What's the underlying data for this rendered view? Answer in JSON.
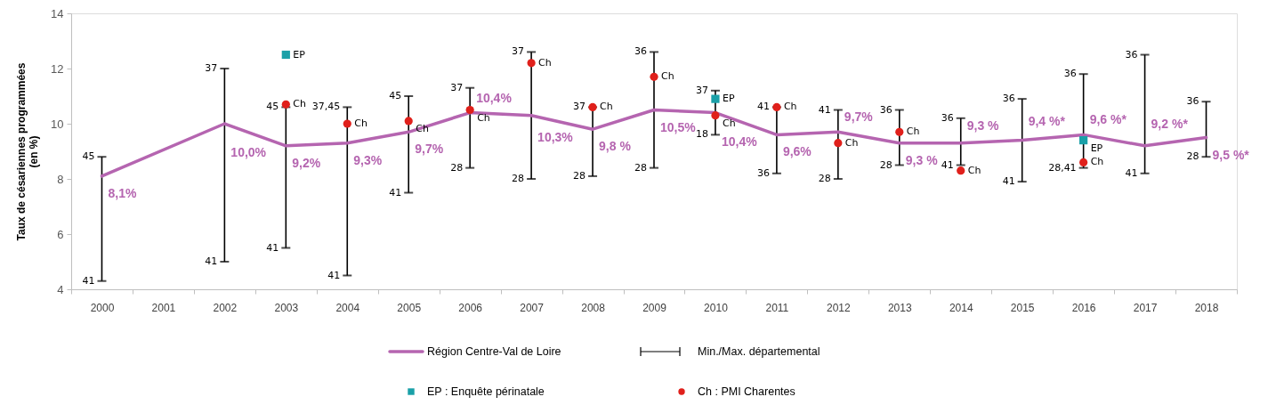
{
  "chart_data": {
    "type": "line",
    "ylabel": "Taux de césariennes programmées\n(en %)",
    "categories": [
      "2000",
      "2001",
      "2002",
      "2003",
      "2004",
      "2005",
      "2006",
      "2007",
      "2008",
      "2009",
      "2010",
      "2011",
      "2012",
      "2013",
      "2014",
      "2015",
      "2016",
      "2017",
      "2018"
    ],
    "ylim": [
      4,
      14
    ],
    "yticks": [
      4,
      6,
      8,
      10,
      12,
      14
    ],
    "legend": "bottom",
    "series": [
      {
        "name": "Région Centre-Val de Loire",
        "color": "#b565b0",
        "marker": "none",
        "line_style": "solid",
        "values": [
          8.1,
          null,
          10.0,
          9.2,
          9.3,
          9.7,
          10.4,
          10.3,
          9.8,
          10.5,
          10.4,
          9.6,
          9.7,
          9.3,
          9.3,
          9.4,
          9.6,
          9.2,
          9.5
        ],
        "value_labels": [
          "8,1%",
          null,
          "10,0%",
          "9,2%",
          "9,3%",
          "9,7%",
          "10,4%",
          "10,3%",
          "9,8 %",
          "10,5%",
          "10,4%",
          "9,6%",
          "9,7%",
          "9,3 %",
          "9,3 %",
          "9,4 %*",
          "9,6 %*",
          "9,2 %*",
          "9,5 %*"
        ],
        "errors": [
          [
            4.3,
            8.8
          ],
          null,
          [
            5.0,
            12.0
          ],
          [
            5.5,
            10.6
          ],
          [
            4.5,
            10.6
          ],
          [
            7.5,
            11.0
          ],
          [
            8.4,
            11.3
          ],
          [
            8.0,
            12.6
          ],
          [
            8.1,
            10.6
          ],
          [
            8.4,
            12.6
          ],
          [
            9.6,
            11.2
          ],
          [
            8.2,
            10.6
          ],
          [
            8.0,
            10.5
          ],
          [
            8.5,
            10.5
          ],
          [
            8.5,
            10.2
          ],
          [
            7.9,
            10.9
          ],
          [
            8.4,
            11.8
          ],
          [
            8.2,
            12.5
          ],
          [
            8.8,
            10.8
          ]
        ]
      },
      {
        "name": "EP : Enquête périnatale",
        "type": "scatter",
        "color": "#1aa0a8",
        "marker": "square",
        "values": [
          null,
          null,
          null,
          12.5,
          null,
          null,
          null,
          null,
          null,
          null,
          10.9,
          null,
          null,
          null,
          null,
          null,
          9.4,
          null,
          null
        ],
        "value_labels": [
          null,
          null,
          null,
          "EP",
          null,
          null,
          null,
          null,
          null,
          null,
          "EP",
          null,
          null,
          null,
          null,
          null,
          "EP",
          null,
          null
        ]
      },
      {
        "name": "Ch : PMI Charentes",
        "type": "scatter",
        "color": "#e0201b",
        "marker": "circle",
        "values": [
          null,
          null,
          null,
          10.7,
          10.0,
          10.1,
          10.5,
          12.2,
          10.6,
          11.7,
          10.3,
          10.6,
          9.3,
          9.7,
          8.3,
          null,
          8.6,
          null,
          null
        ],
        "value_labels": [
          null,
          null,
          null,
          "Ch",
          "Ch",
          "Ch",
          "Ch",
          "Ch",
          "Ch",
          "Ch",
          "Ch",
          "Ch",
          "Ch",
          "Ch",
          "Ch",
          null,
          "Ch",
          null,
          null
        ]
      }
    ],
    "annotations": [
      "Min./Max. départemental",
      {
        "text": "45",
        "x": "2000",
        "y": 8.8
      },
      {
        "text": "41",
        "x": "2000",
        "y": 4.3
      },
      {
        "text": "37",
        "x": "2002",
        "y": 12.0
      },
      {
        "text": "41",
        "x": "2002",
        "y": 5.0
      },
      {
        "text": "45",
        "x": "2003",
        "y": 10.6
      },
      {
        "text": "41",
        "x": "2003",
        "y": 5.5
      },
      {
        "text": "37,45",
        "x": "2004",
        "y": 10.6
      },
      {
        "text": "41",
        "x": "2004",
        "y": 4.5
      },
      {
        "text": "45",
        "x": "2005",
        "y": 11.0
      },
      {
        "text": "41",
        "x": "2005",
        "y": 7.5
      },
      {
        "text": "37",
        "x": "2006",
        "y": 11.3
      },
      {
        "text": "28",
        "x": "2006",
        "y": 8.4
      },
      {
        "text": "37",
        "x": "2007",
        "y": 12.6
      },
      {
        "text": "28",
        "x": "2007",
        "y": 8.0
      },
      {
        "text": "37",
        "x": "2008",
        "y": 10.6
      },
      {
        "text": "28",
        "x": "2008",
        "y": 8.1
      },
      {
        "text": "36",
        "x": "2009",
        "y": 12.6
      },
      {
        "text": "28",
        "x": "2009",
        "y": 8.4
      },
      {
        "text": "37",
        "x": "2010",
        "y": 11.2
      },
      {
        "text": "18",
        "x": "2010",
        "y": 9.6
      },
      {
        "text": "41",
        "x": "2011",
        "y": 10.6
      },
      {
        "text": "36",
        "x": "2011",
        "y": 8.2
      },
      {
        "text": "41",
        "x": "2012",
        "y": 10.5
      },
      {
        "text": "28",
        "x": "2012",
        "y": 8.0
      },
      {
        "text": "36",
        "x": "2013",
        "y": 10.5
      },
      {
        "text": "28",
        "x": "2013",
        "y": 8.5
      },
      {
        "text": "36",
        "x": "2014",
        "y": 10.2
      },
      {
        "text": "41",
        "x": "2014",
        "y": 8.5
      },
      {
        "text": "36",
        "x": "2015",
        "y": 10.9
      },
      {
        "text": "41",
        "x": "2015",
        "y": 7.9
      },
      {
        "text": "36",
        "x": "2016",
        "y": 11.8
      },
      {
        "text": "28,41",
        "x": "2016",
        "y": 8.4
      },
      {
        "text": "36",
        "x": "2017",
        "y": 12.5
      },
      {
        "text": "41",
        "x": "2017",
        "y": 8.2
      },
      {
        "text": "36",
        "x": "2018",
        "y": 10.8
      },
      {
        "text": "28",
        "x": "2018",
        "y": 8.8
      }
    ]
  }
}
